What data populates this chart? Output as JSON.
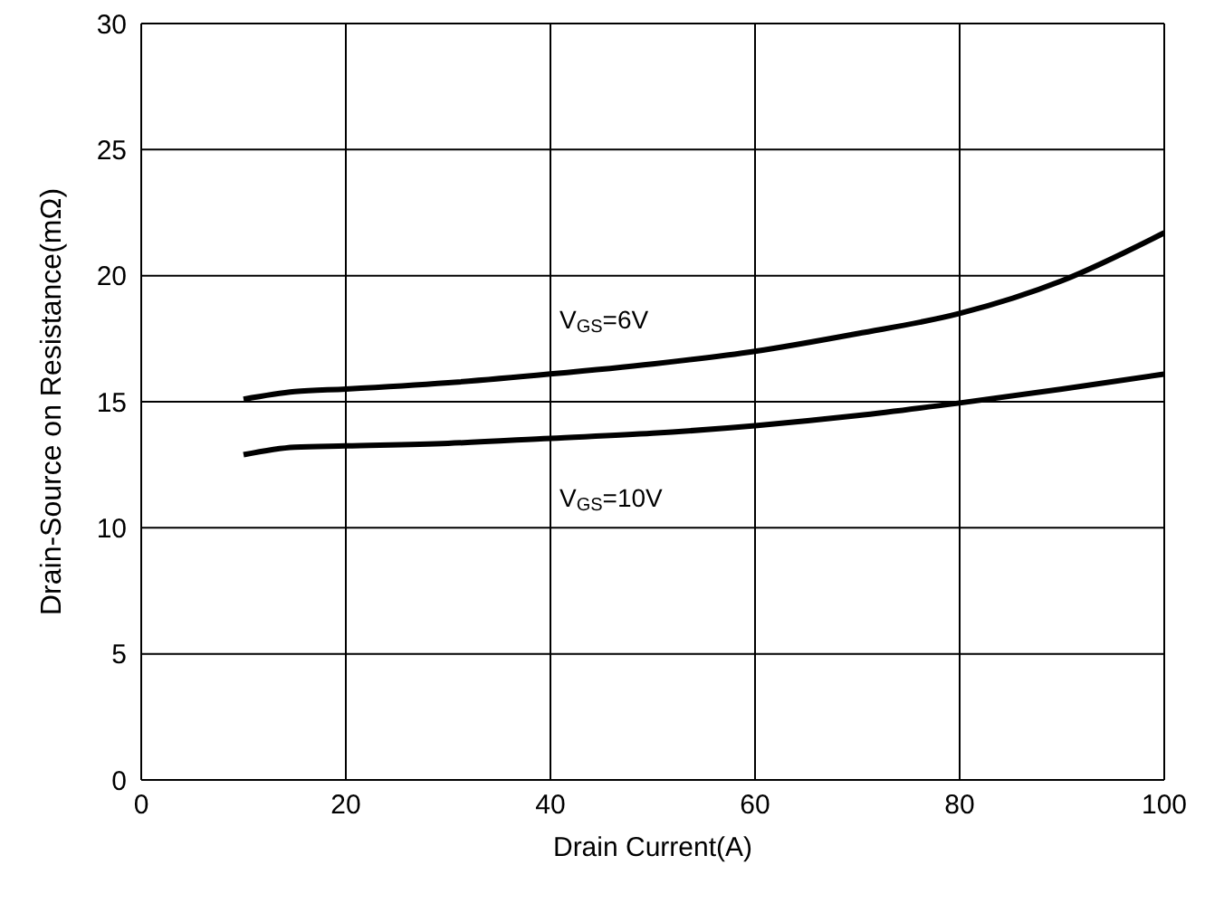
{
  "chart_data": {
    "type": "line",
    "xlabel": "Drain Current(A)",
    "ylabel": "Drain-Source on Resistance(mΩ)",
    "x": [
      10,
      15,
      20,
      30,
      40,
      50,
      60,
      70,
      80,
      90,
      100
    ],
    "series": [
      {
        "name": "V$_{GS}$=6V",
        "color": "#000000",
        "values": [
          15.1,
          15.4,
          15.5,
          15.75,
          16.1,
          16.5,
          17.0,
          17.7,
          18.5,
          19.8,
          21.7
        ]
      },
      {
        "name": "V$_{GS}$=10V",
        "color": "#000000",
        "values": [
          12.9,
          13.2,
          13.25,
          13.35,
          13.55,
          13.75,
          14.05,
          14.45,
          14.95,
          15.5,
          16.1
        ]
      }
    ],
    "xlim": [
      0,
      100
    ],
    "xticks": [
      0,
      20,
      40,
      60,
      80,
      100
    ],
    "ylim": [
      0,
      30
    ],
    "yticks": [
      0,
      5,
      10,
      15,
      20,
      25,
      30
    ],
    "grid": true,
    "marker": "none",
    "line_style": "solid"
  }
}
